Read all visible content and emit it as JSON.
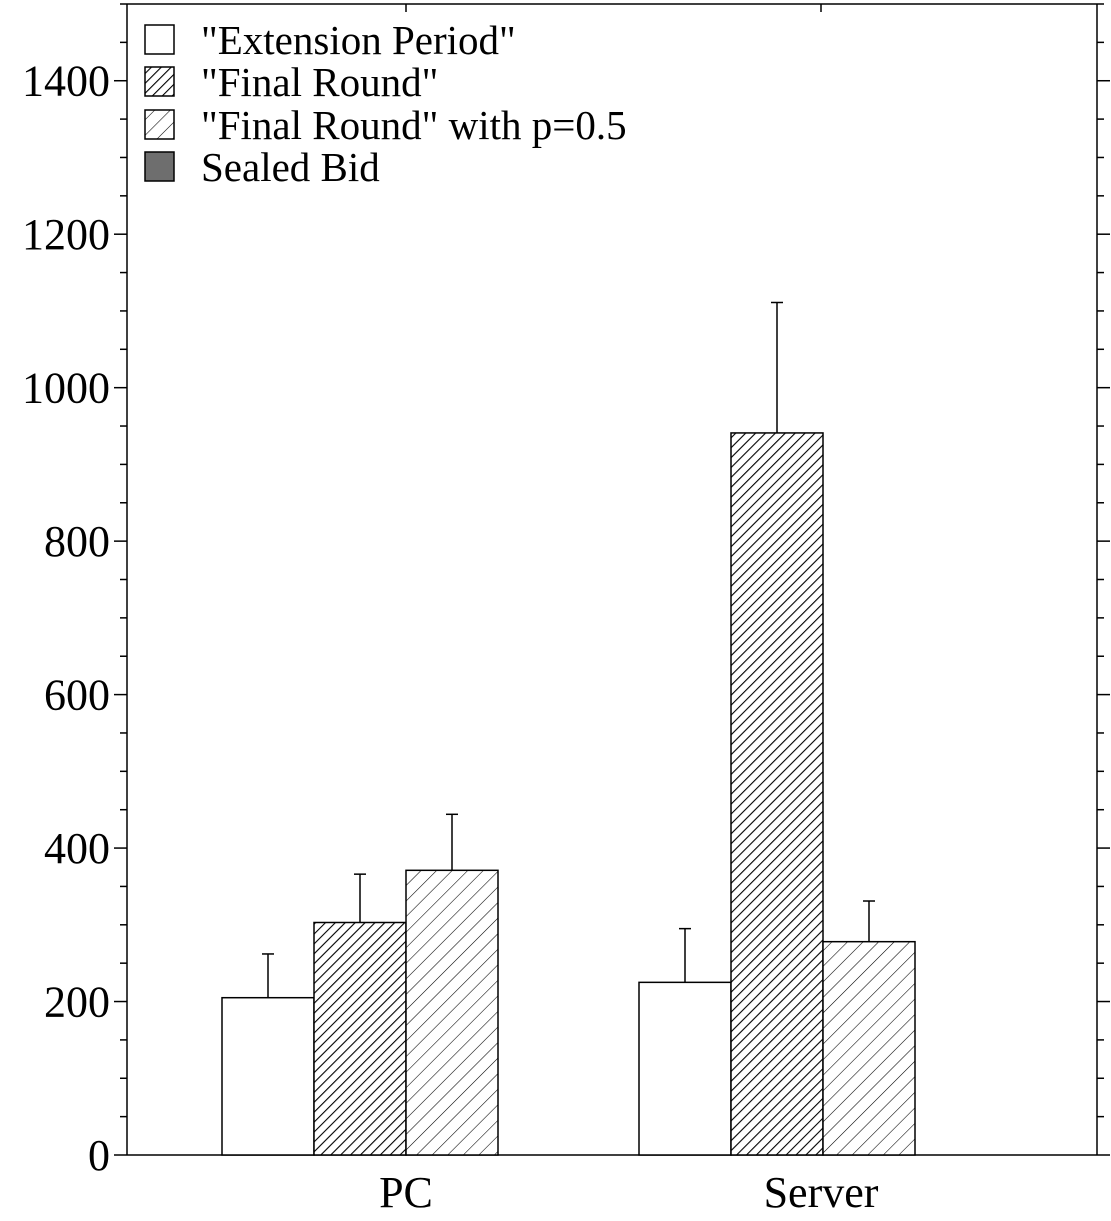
{
  "chart_data": {
    "type": "bar",
    "title": "",
    "xlabel": "",
    "ylabel": "",
    "categories": [
      "PC",
      "Server"
    ],
    "ylim": [
      0,
      1500
    ],
    "yticks": [
      0,
      200,
      400,
      600,
      800,
      1000,
      1200,
      1400
    ],
    "grid": false,
    "legend_position": "top-left",
    "series": [
      {
        "name": "\"Extension Period\"",
        "pattern": "none",
        "color": "#ffffff",
        "values": [
          205,
          225
        ],
        "errors": [
          57,
          70
        ]
      },
      {
        "name": "\"Final Round\"",
        "pattern": "dense-hatch",
        "color": "#000000",
        "values": [
          303,
          941
        ],
        "errors": [
          63,
          170
        ]
      },
      {
        "name": "\"Final Round\" with p=0.5",
        "pattern": "sparse-hatch",
        "color": "#000000",
        "values": [
          371,
          278
        ],
        "errors": [
          73,
          53
        ]
      },
      {
        "name": "Sealed Bid",
        "pattern": "solid-dark",
        "color": "#6e6e6e",
        "values": [
          null,
          null
        ],
        "errors": [
          null,
          null
        ]
      }
    ]
  }
}
